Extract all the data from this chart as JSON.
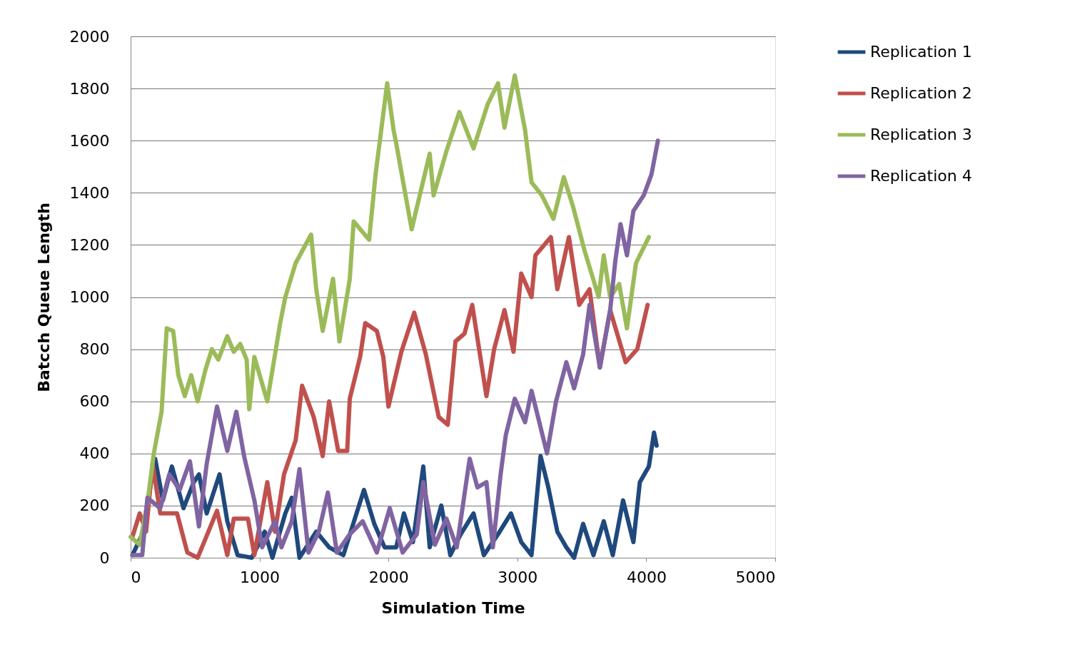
{
  "chart_data": {
    "type": "line",
    "xlabel": "Simulation Time",
    "ylabel": "Batcch Queue Length",
    "xlim": [
      0,
      5000
    ],
    "xticks": [
      0,
      1000,
      2000,
      3000,
      4000,
      5000
    ],
    "ylim": [
      0,
      2000
    ],
    "yticks": [
      0,
      200,
      400,
      600,
      800,
      1000,
      1200,
      1400,
      1600,
      1800,
      2000
    ],
    "grid": "y",
    "legend": "right",
    "marker": "none",
    "line_style": "solid",
    "series": [
      {
        "name": "Replication 1",
        "color": "#1f497d",
        "x": [
          14,
          90,
          190,
          250,
          320,
          410,
          490,
          530,
          590,
          690,
          750,
          830,
          940,
          1040,
          1100,
          1200,
          1250,
          1310,
          1440,
          1540,
          1650,
          1810,
          1890,
          1970,
          2060,
          2120,
          2190,
          2270,
          2320,
          2410,
          2480,
          2560,
          2660,
          2740,
          2850,
          2950,
          3030,
          3110,
          3180,
          3240,
          3310,
          3380,
          3440,
          3510,
          3590,
          3670,
          3740,
          3820,
          3900,
          3950,
          4020,
          4060,
          4080
        ],
        "values": [
          10,
          90,
          380,
          220,
          350,
          190,
          290,
          320,
          170,
          320,
          140,
          10,
          0,
          100,
          0,
          170,
          230,
          0,
          100,
          40,
          10,
          260,
          130,
          40,
          40,
          170,
          60,
          350,
          40,
          200,
          10,
          90,
          170,
          10,
          90,
          170,
          60,
          10,
          390,
          270,
          100,
          40,
          0,
          130,
          10,
          140,
          10,
          220,
          60,
          290,
          350,
          480,
          430
        ]
      },
      {
        "name": "Replication 2",
        "color": "#c0504d",
        "x": [
          14,
          70,
          120,
          170,
          230,
          360,
          440,
          520,
          670,
          750,
          800,
          910,
          960,
          1060,
          1120,
          1190,
          1280,
          1330,
          1420,
          1490,
          1540,
          1610,
          1680,
          1700,
          1780,
          1820,
          1910,
          1960,
          2000,
          2100,
          2200,
          2290,
          2390,
          2460,
          2520,
          2590,
          2650,
          2760,
          2820,
          2900,
          2970,
          3030,
          3110,
          3140,
          3260,
          3310,
          3400,
          3480,
          3560,
          3640,
          3720,
          3840,
          3930,
          4010
        ],
        "values": [
          80,
          170,
          100,
          360,
          170,
          170,
          20,
          0,
          180,
          10,
          150,
          150,
          10,
          290,
          100,
          320,
          450,
          660,
          540,
          390,
          600,
          410,
          410,
          610,
          770,
          900,
          870,
          770,
          580,
          790,
          940,
          780,
          540,
          510,
          830,
          860,
          970,
          620,
          800,
          950,
          790,
          1090,
          1000,
          1160,
          1230,
          1030,
          1230,
          970,
          1030,
          730,
          950,
          750,
          800,
          970
        ]
      },
      {
        "name": "Replication 3",
        "color": "#9bbb59",
        "x": [
          0,
          70,
          130,
          180,
          240,
          280,
          330,
          370,
          420,
          470,
          520,
          580,
          630,
          680,
          750,
          800,
          850,
          900,
          920,
          960,
          1060,
          1120,
          1160,
          1200,
          1280,
          1400,
          1440,
          1490,
          1570,
          1620,
          1700,
          1730,
          1850,
          1900,
          1990,
          2040,
          2060,
          2180,
          2320,
          2350,
          2450,
          2550,
          2660,
          2770,
          2850,
          2900,
          2980,
          3060,
          3110,
          3190,
          3280,
          3360,
          3430,
          3520,
          3630,
          3670,
          3720,
          3790,
          3850,
          3920,
          4020
        ],
        "values": [
          80,
          50,
          210,
          400,
          560,
          880,
          870,
          700,
          620,
          700,
          600,
          720,
          800,
          760,
          850,
          790,
          820,
          760,
          570,
          770,
          600,
          780,
          900,
          1000,
          1130,
          1240,
          1030,
          870,
          1070,
          830,
          1070,
          1290,
          1220,
          1470,
          1820,
          1640,
          1590,
          1260,
          1550,
          1390,
          1560,
          1710,
          1570,
          1740,
          1820,
          1650,
          1850,
          1640,
          1440,
          1390,
          1300,
          1460,
          1350,
          1180,
          1000,
          1160,
          1000,
          1050,
          880,
          1130,
          1230
        ]
      },
      {
        "name": "Replication 4",
        "color": "#8064a2",
        "x": [
          14,
          90,
          130,
          230,
          300,
          380,
          460,
          530,
          590,
          670,
          750,
          820,
          880,
          960,
          1020,
          1120,
          1170,
          1250,
          1310,
          1380,
          1460,
          1530,
          1600,
          1700,
          1800,
          1910,
          2010,
          2110,
          2220,
          2270,
          2360,
          2450,
          2530,
          2630,
          2690,
          2760,
          2810,
          2870,
          2910,
          2980,
          3060,
          3110,
          3230,
          3300,
          3380,
          3440,
          3510,
          3560,
          3640,
          3720,
          3760,
          3800,
          3850,
          3900,
          3980,
          4040,
          4090
        ],
        "values": [
          10,
          10,
          230,
          190,
          320,
          260,
          370,
          120,
          360,
          580,
          410,
          560,
          390,
          220,
          40,
          140,
          40,
          140,
          340,
          20,
          100,
          250,
          20,
          90,
          140,
          20,
          190,
          20,
          90,
          290,
          50,
          150,
          40,
          380,
          270,
          290,
          40,
          320,
          470,
          610,
          520,
          640,
          400,
          600,
          750,
          650,
          780,
          970,
          730,
          950,
          1140,
          1280,
          1160,
          1330,
          1390,
          1470,
          1600
        ]
      }
    ]
  }
}
